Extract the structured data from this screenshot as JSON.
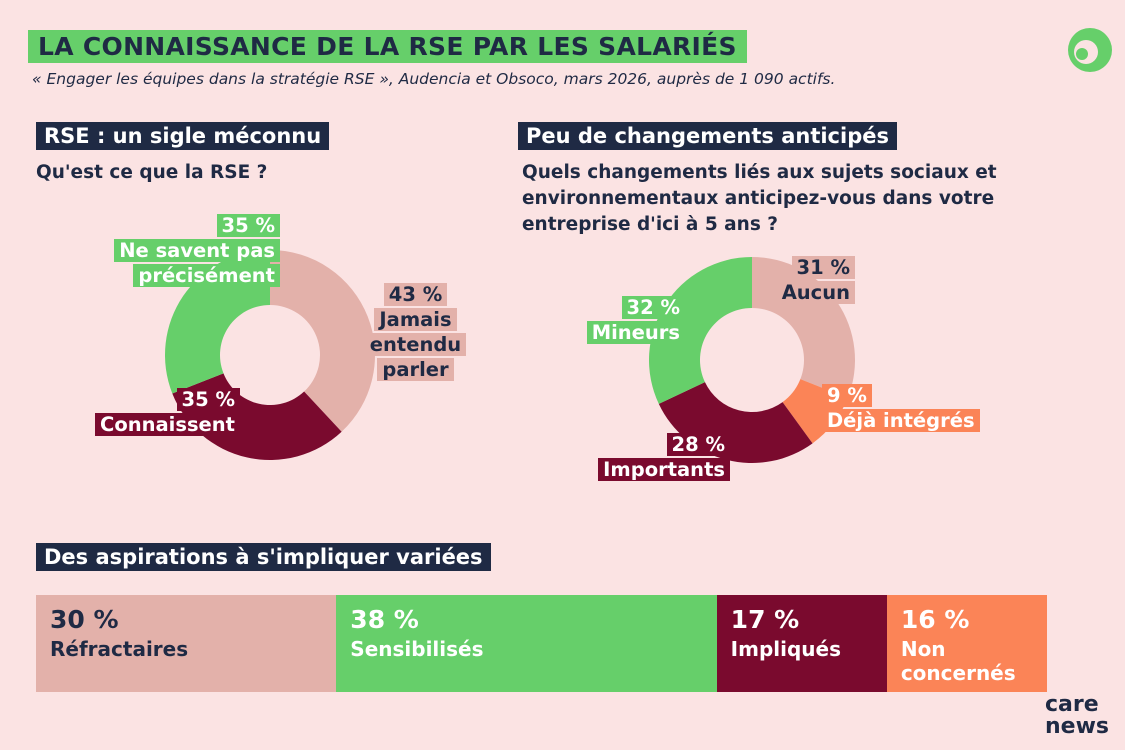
{
  "header": {
    "title": "LA CONNAISSANCE DE LA RSE PAR LES SALARIÉS",
    "subtitle": "« Engager les équipes dans la stratégie RSE », Audencia et Obsoco, mars 2026, auprès de 1 090 actifs."
  },
  "chart_data": [
    {
      "type": "donut",
      "title": "RSE : un sigle méconnu",
      "question": "Qu'est ce que la RSE ?",
      "categories": [
        "Jamais entendu parler",
        "Connaissent",
        "Ne savent pas précisément"
      ],
      "values": [
        43,
        35,
        35
      ],
      "value_labels": [
        "43 %",
        "35 %",
        "35 %"
      ],
      "colors": [
        "#e3b1aa",
        "#7a0a2e",
        "#66cf6a"
      ]
    },
    {
      "type": "donut",
      "title": "Peu de changements anticipés",
      "question": "Quels changements liés aux sujets sociaux et environnementaux anticipez-vous dans votre entreprise d'ici à 5 ans ?",
      "categories": [
        "Aucun",
        "Déjà intégrés",
        "Importants",
        "Mineurs"
      ],
      "values": [
        31,
        9,
        28,
        32
      ],
      "value_labels": [
        "31 %",
        "9 %",
        "28 %",
        "32 %"
      ],
      "colors": [
        "#e3b1aa",
        "#fb8457",
        "#7a0a2e",
        "#66cf6a"
      ]
    },
    {
      "type": "stacked-bar",
      "title": "Des aspirations à s'impliquer variées",
      "categories": [
        "Réfractaires",
        "Sensibilisés",
        "Impliqués",
        "Non concernés"
      ],
      "values": [
        30,
        38,
        17,
        16
      ],
      "value_labels": [
        "30 %",
        "38 %",
        "17 %",
        "16 %"
      ],
      "colors": [
        "#e3b1aa",
        "#66cf6a",
        "#7a0a2e",
        "#fb8457"
      ]
    }
  ],
  "brand": "care news"
}
